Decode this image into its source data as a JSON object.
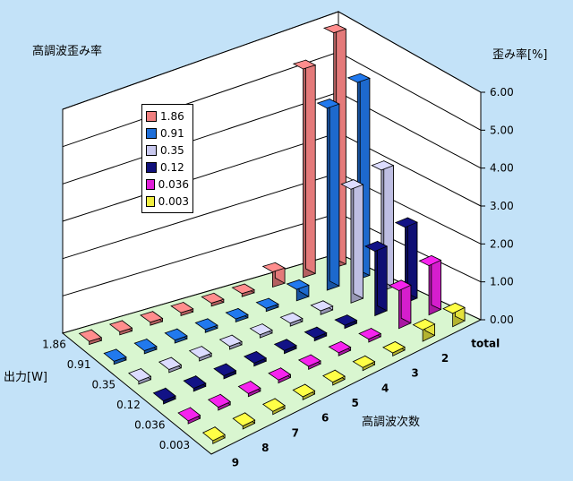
{
  "chart_data": {
    "type": "bar",
    "title": "高調波歪み率",
    "zlabel": "歪み率[%]",
    "xlabel": "高調波次数",
    "ylabel": "出力[W]",
    "zlim": [
      0,
      6
    ],
    "z_ticks": [
      "0.00",
      "1.00",
      "2.00",
      "3.00",
      "4.00",
      "5.00",
      "6.00"
    ],
    "harmonic_categories": [
      "total",
      "2",
      "3",
      "4",
      "5",
      "6",
      "7",
      "8",
      "9"
    ],
    "power_categories": [
      "1.86",
      "0.91",
      "0.35",
      "0.12",
      "0.036",
      "0.003"
    ],
    "series": [
      {
        "name": "1.86",
        "color": "#f08080",
        "values": [
          6.2,
          5.5,
          0.4,
          0.05,
          0.03,
          0.03,
          0.02,
          0.02,
          0.02
        ]
      },
      {
        "name": "0.91",
        "color": "#1e6ed8",
        "values": [
          5.2,
          4.8,
          0.3,
          0.05,
          0.03,
          0.03,
          0.02,
          0.02,
          0.02
        ]
      },
      {
        "name": "0.35",
        "color": "#c8c8ee",
        "values": [
          3.2,
          3.0,
          0.1,
          0.03,
          0.02,
          0.02,
          0.02,
          0.02,
          0.02
        ]
      },
      {
        "name": "0.12",
        "color": "#10107a",
        "values": [
          2.0,
          1.7,
          0.03,
          0.02,
          0.02,
          0.02,
          0.02,
          0.02,
          0.02
        ]
      },
      {
        "name": "0.036",
        "color": "#e020d8",
        "values": [
          1.3,
          1.0,
          0.03,
          0.02,
          0.02,
          0.02,
          0.02,
          0.02,
          0.02
        ]
      },
      {
        "name": "0.003",
        "color": "#f0ee40",
        "values": [
          0.35,
          0.3,
          0.02,
          0.02,
          0.02,
          0.02,
          0.02,
          0.02,
          0.02
        ]
      }
    ],
    "legend_position": "upper-left",
    "grid": true
  }
}
